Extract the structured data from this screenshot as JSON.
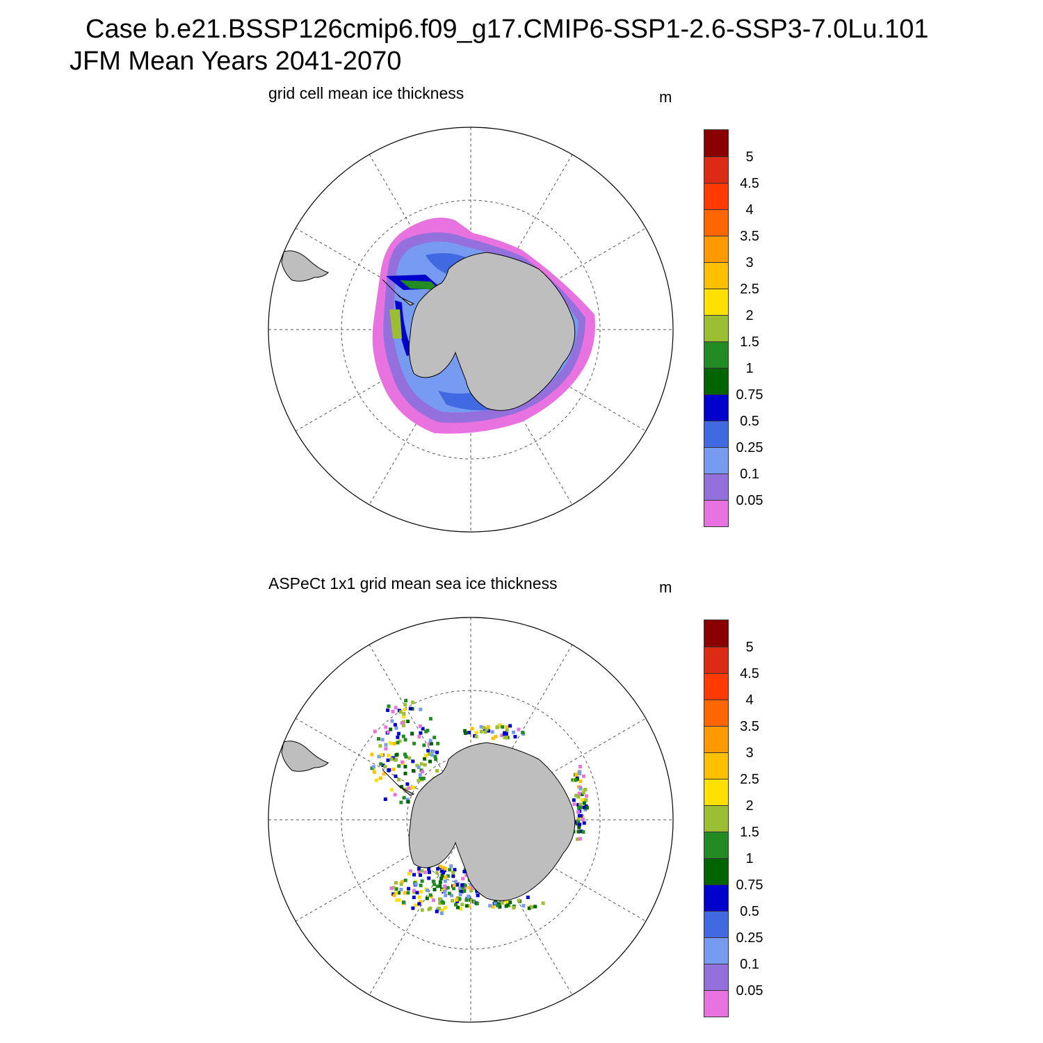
{
  "header": {
    "line1": "Case b.e21.BSSP126cmip6.f09_g17.CMIP6-SSP1-2.6-SSP3-7.0Lu.101",
    "line2": "JFM Mean    Years 2041-2070"
  },
  "panels": [
    {
      "title": "grid cell mean ice thickness",
      "unit": "m"
    },
    {
      "title": "ASPeCt 1x1 grid mean sea ice thickness",
      "unit": "m"
    }
  ],
  "colorbar": {
    "labels": [
      "5",
      "4.5",
      "4",
      "3.5",
      "3",
      "2.5",
      "2",
      "1.5",
      "1",
      "0.75",
      "0.5",
      "0.25",
      "0.1",
      "0.05"
    ],
    "colors": [
      "#8b0000",
      "#dd2a14",
      "#ff3a00",
      "#ff6600",
      "#ff9900",
      "#ffc000",
      "#ffe100",
      "#9bbe33",
      "#228b22",
      "#006400",
      "#0000cd",
      "#4169e1",
      "#789bf2",
      "#9370db",
      "#e872e0"
    ]
  },
  "map_colors": {
    "land": "#bebebe",
    "coast": "#000000",
    "grid": "#555555"
  }
}
